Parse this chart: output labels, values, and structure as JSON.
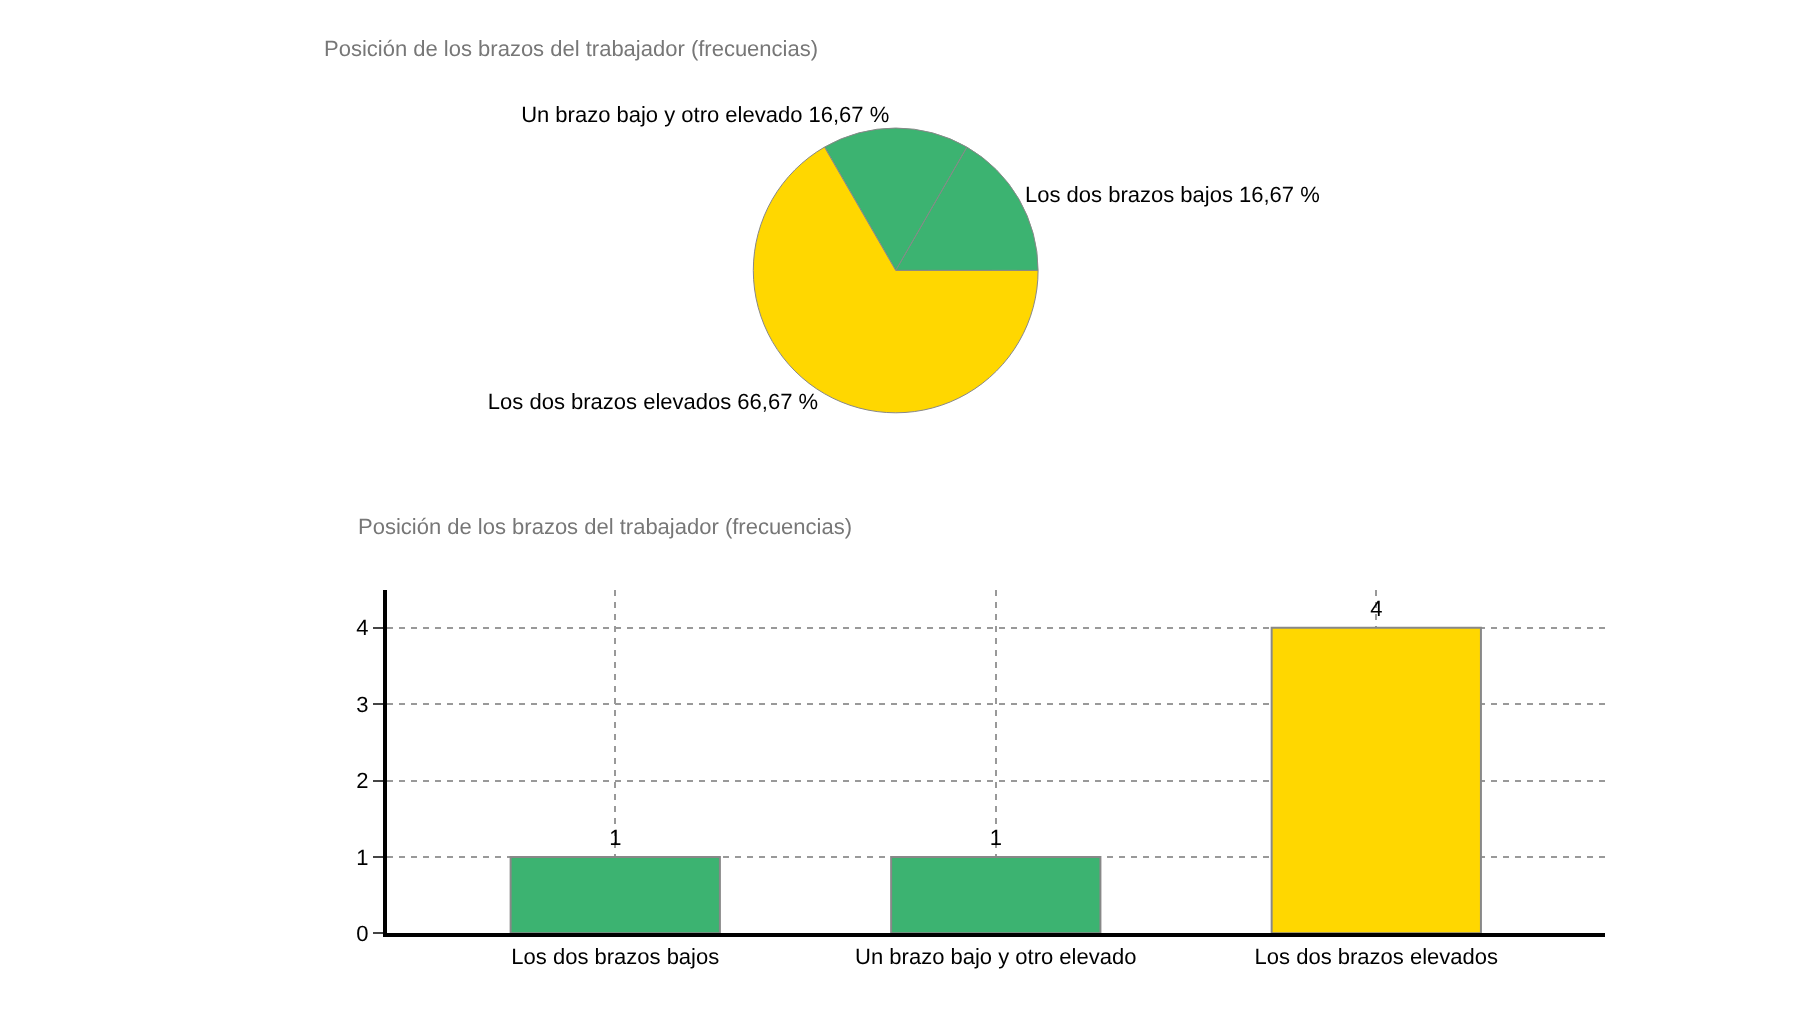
{
  "chart_data": [
    {
      "type": "pie",
      "title": "Posición de los brazos del trabajador (frecuencias)",
      "categories": [
        "Los dos brazos bajos",
        "Un brazo bajo y otro elevado",
        "Los dos brazos elevados"
      ],
      "values": [
        16.67,
        16.67,
        66.67
      ],
      "value_labels": [
        "16,67 %",
        "16,67 %",
        "66,67 %"
      ],
      "colors": [
        "#3cb371",
        "#3cb371",
        "#ffd700"
      ]
    },
    {
      "type": "bar",
      "title": "Posición de los brazos del trabajador (frecuencias)",
      "categories": [
        "Los dos brazos bajos",
        "Un brazo bajo y otro elevado",
        "Los dos brazos elevados"
      ],
      "values": [
        1,
        1,
        4
      ],
      "colors": [
        "#3cb371",
        "#3cb371",
        "#ffd700"
      ],
      "ylim": [
        0,
        4.5
      ],
      "yticks": [
        0,
        1,
        2,
        3,
        4
      ],
      "grid": true,
      "data_labels": true
    }
  ]
}
